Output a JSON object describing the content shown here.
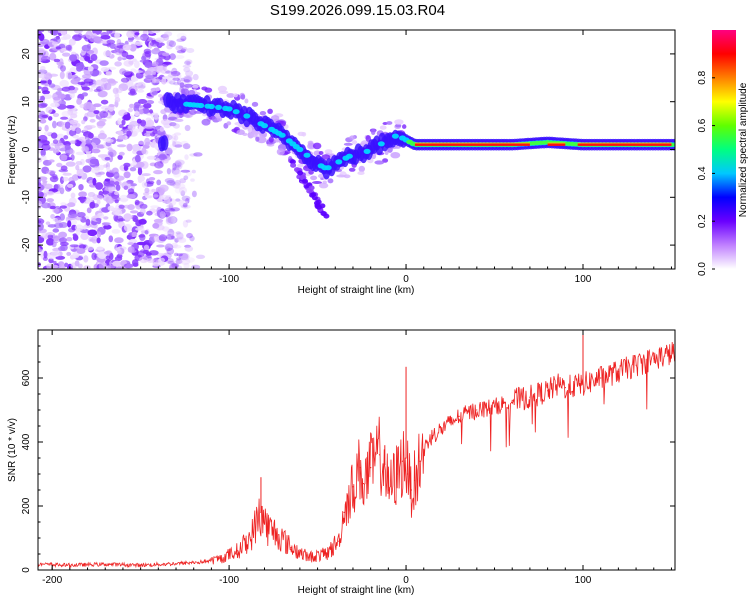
{
  "figure": {
    "title": "S199.2026.099.15.03.R04"
  },
  "chart_data": [
    {
      "type": "heatmap",
      "title": "",
      "xlabel": "Height of straight line (km)",
      "ylabel": "Frequency (Hz)",
      "xlim": [
        -208,
        152
      ],
      "ylim": [
        -25,
        25
      ],
      "xticks": [
        -200,
        -100,
        0,
        100
      ],
      "yticks": [
        -20,
        -10,
        0,
        10,
        20
      ],
      "colorbar": {
        "label": "Normalized spectral amplitude",
        "range": [
          0.0,
          1.0
        ],
        "ticks": [
          "0.0",
          "0.2",
          "0.4",
          "0.6",
          "0.8"
        ],
        "colormap": [
          "#ffffff",
          "#c080ff",
          "#6a00ff",
          "#0000ff",
          "#00c8ff",
          "#00ff80",
          "#60ff00",
          "#ffff00",
          "#ff8000",
          "#ff0000",
          "#ff0080"
        ]
      },
      "features": {
        "noise_region_x": [
          -208,
          -120
        ],
        "track": {
          "x": [
            -135,
            -125,
            -110,
            -100,
            -90,
            -80,
            -70,
            -60,
            -50,
            -45,
            -40,
            -35,
            -30,
            -25,
            -20,
            -15,
            -10,
            -5,
            0,
            5,
            10,
            20,
            40,
            60,
            80,
            100,
            120,
            152
          ],
          "f": [
            10,
            9.5,
            9,
            8.5,
            7,
            5,
            3,
            0,
            -3,
            -4,
            -3,
            -2,
            -1,
            -1,
            0,
            1,
            2,
            3,
            2,
            1,
            1,
            1,
            1,
            1,
            1.5,
            1,
            1,
            1
          ]
        }
      }
    },
    {
      "type": "line",
      "title": "",
      "xlabel": "Height of straight line (km)",
      "ylabel": "SNR (10 * v/v)",
      "xlim": [
        -208,
        152
      ],
      "ylim": [
        0,
        750
      ],
      "xticks": [
        -200,
        -100,
        0,
        100
      ],
      "yticks": [
        0,
        200,
        400,
        600
      ],
      "series": [
        {
          "name": "SNR",
          "color": "#ee2222",
          "x": [
            -208,
            -190,
            -170,
            -150,
            -130,
            -115,
            -105,
            -95,
            -88,
            -82,
            -78,
            -72,
            -65,
            -55,
            -45,
            -38,
            -35,
            -30,
            -26,
            -24,
            -20,
            -15,
            -12,
            -10,
            -5,
            -2,
            0,
            1,
            3,
            5,
            8,
            12,
            15,
            20,
            25,
            30,
            40,
            50,
            60,
            70,
            80,
            87,
            90,
            100,
            110,
            120,
            130,
            140,
            152
          ],
          "y": [
            18,
            15,
            18,
            15,
            20,
            25,
            35,
            60,
            100,
            180,
            130,
            110,
            70,
            40,
            50,
            90,
            180,
            260,
            320,
            270,
            320,
            360,
            330,
            250,
            300,
            340,
            350,
            300,
            250,
            280,
            340,
            400,
            420,
            440,
            460,
            480,
            500,
            510,
            530,
            540,
            560,
            580,
            570,
            580,
            600,
            620,
            640,
            660,
            680
          ]
        }
      ]
    }
  ]
}
